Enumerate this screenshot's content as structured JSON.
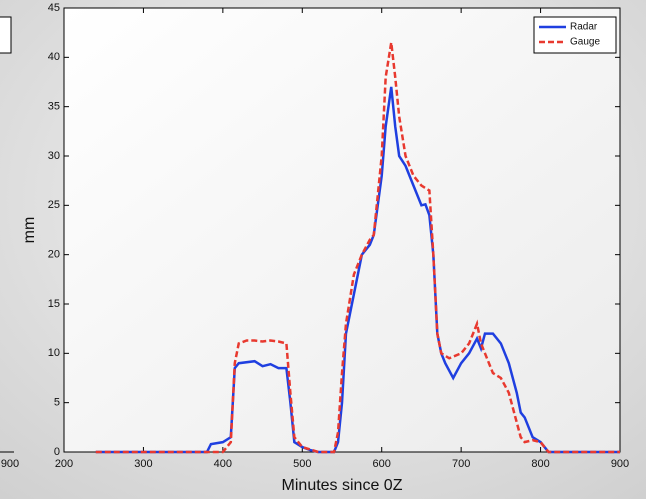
{
  "chart_data": {
    "type": "line",
    "xlabel": "Minutes since 0Z",
    "ylabel": "mm",
    "xlim": [
      200,
      900
    ],
    "xticks": [
      200,
      300,
      400,
      500,
      600,
      700,
      800,
      900
    ],
    "ylim": [
      0,
      45
    ],
    "yticks": [
      0,
      5,
      10,
      15,
      20,
      25,
      30,
      35,
      40,
      45
    ],
    "legend": "upper right",
    "series": [
      {
        "name": "Radar",
        "color": "#1f3fe0",
        "dash": "solid",
        "x": [
          240,
          380,
          385,
          400,
          410,
          415,
          420,
          440,
          450,
          460,
          470,
          480,
          485,
          490,
          500,
          510,
          520,
          540,
          545,
          550,
          555,
          565,
          575,
          585,
          590,
          600,
          605,
          612,
          617,
          622,
          630,
          640,
          650,
          655,
          660,
          665,
          670,
          675,
          680,
          690,
          700,
          710,
          720,
          725,
          730,
          740,
          750,
          760,
          770,
          775,
          780,
          790,
          800,
          805,
          810,
          900
        ],
        "values": [
          0,
          0,
          0.8,
          1,
          1.5,
          8.5,
          9,
          9.2,
          8.7,
          8.9,
          8.5,
          8.5,
          5,
          1,
          0.5,
          0.2,
          0,
          0,
          1,
          5,
          12,
          16,
          20,
          21,
          22,
          28,
          33,
          37,
          33,
          30,
          29,
          27,
          25,
          25.1,
          24,
          20,
          12,
          10,
          9,
          7.5,
          9,
          10,
          11.5,
          10.5,
          12,
          12,
          11,
          9,
          6,
          4,
          3.5,
          1.5,
          1,
          0.5,
          0,
          0
        ]
      },
      {
        "name": "Gauge",
        "color": "#e8392f",
        "dash": "dashed",
        "x": [
          240,
          400,
          410,
          415,
          420,
          430,
          440,
          450,
          460,
          470,
          480,
          485,
          490,
          500,
          520,
          540,
          545,
          550,
          555,
          565,
          575,
          585,
          590,
          600,
          605,
          612,
          617,
          622,
          630,
          640,
          650,
          660,
          665,
          670,
          675,
          685,
          700,
          710,
          720,
          725,
          730,
          740,
          750,
          760,
          770,
          775,
          780,
          790,
          800,
          805,
          810,
          900
        ],
        "values": [
          0,
          0,
          1,
          9,
          11,
          11.3,
          11.3,
          11.2,
          11.3,
          11.2,
          11,
          6,
          1.5,
          0.5,
          0,
          0,
          2,
          8,
          13,
          18,
          20,
          21.5,
          22,
          30,
          38,
          41.5,
          38,
          34,
          30,
          28,
          27,
          26.5,
          20,
          12,
          10,
          9.5,
          10,
          11,
          13,
          11,
          10,
          8,
          7.5,
          6,
          3,
          1.5,
          1,
          1.2,
          1,
          0.5,
          0,
          0
        ]
      }
    ]
  },
  "left_fragment": {
    "xtick_label": "900"
  }
}
